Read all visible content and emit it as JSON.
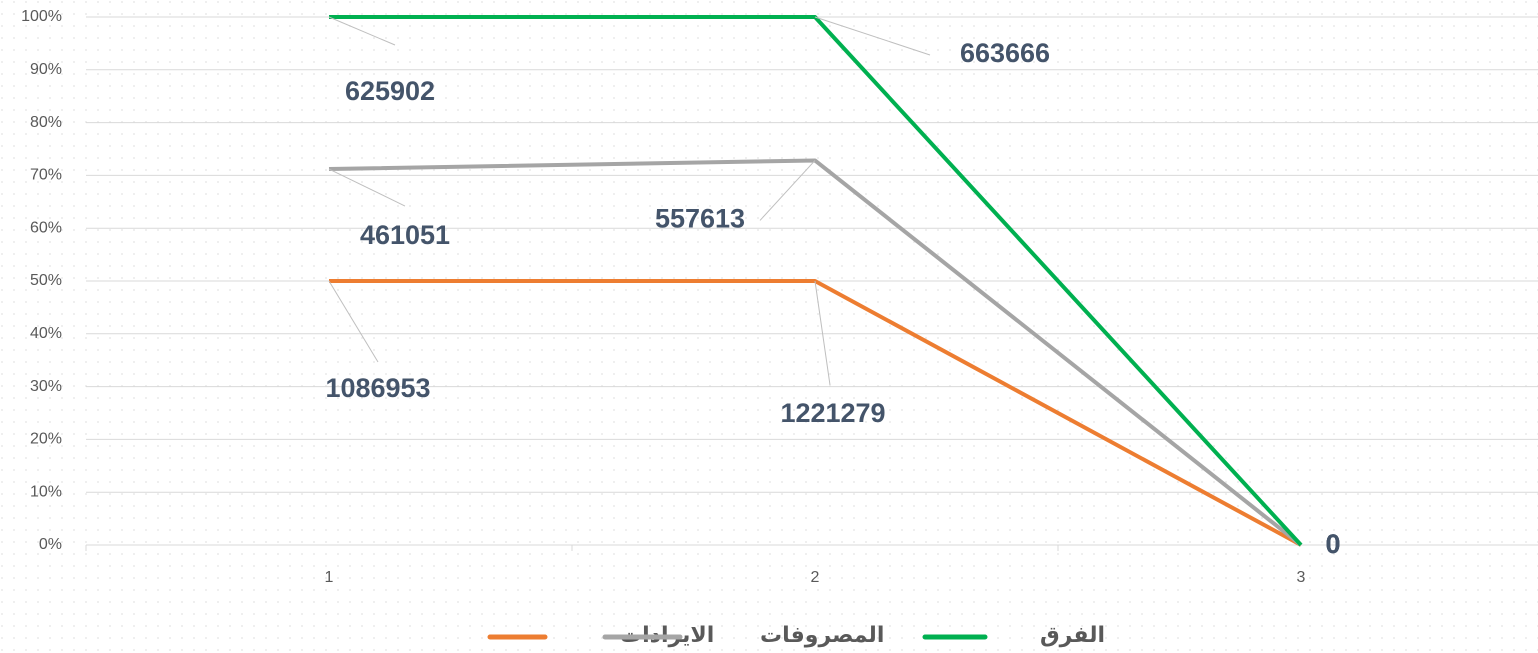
{
  "chart_data": {
    "type": "line",
    "stacked": "percent",
    "categories": [
      "1",
      "2",
      "3"
    ],
    "series": [
      {
        "name": "الايرادات",
        "color": "#ed7d31",
        "values": [
          1086953,
          1221279,
          0
        ]
      },
      {
        "name": "المصروفات",
        "color": "#a5a5a5",
        "values": [
          461051,
          557613,
          0
        ]
      },
      {
        "name": "الفرق",
        "color": "#00b050",
        "values": [
          625902,
          663666,
          0
        ]
      }
    ],
    "ylim": [
      0,
      100
    ],
    "yticks": [
      {
        "value": 0,
        "label": "0%"
      },
      {
        "value": 10,
        "label": "10%"
      },
      {
        "value": 20,
        "label": "20%"
      },
      {
        "value": 30,
        "label": "30%"
      },
      {
        "value": 40,
        "label": "40%"
      },
      {
        "value": 50,
        "label": "50%"
      },
      {
        "value": 60,
        "label": "60%"
      },
      {
        "value": 70,
        "label": "70%"
      },
      {
        "value": 80,
        "label": "80%"
      },
      {
        "value": 90,
        "label": "90%"
      },
      {
        "value": 100,
        "label": "100%"
      }
    ],
    "grid": true,
    "legend": "bottom"
  }
}
